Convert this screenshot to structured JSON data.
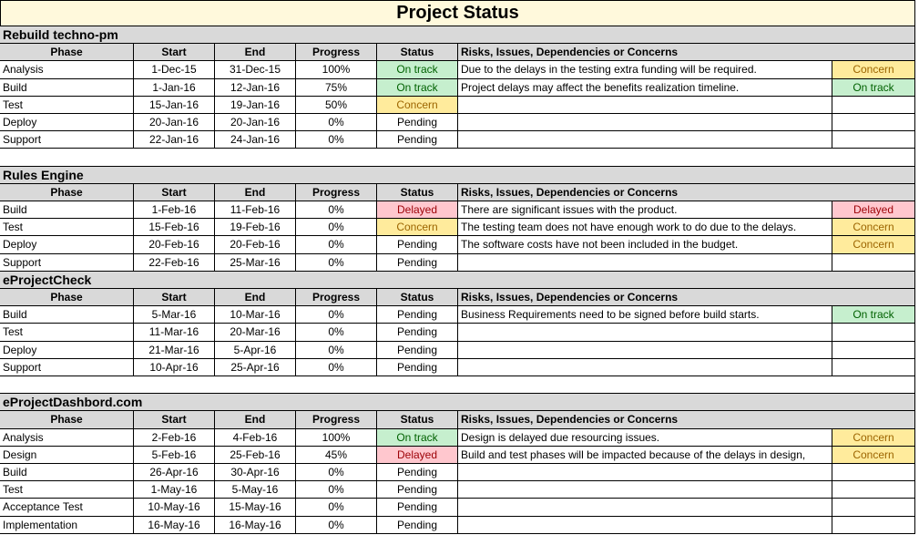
{
  "title": "Project Status",
  "columns": [
    "Phase",
    "Start",
    "End",
    "Progress",
    "Status",
    "Risks, Issues, Dependencies or Concerns"
  ],
  "status_colors": {
    "On track": {
      "bg": "#c6efce",
      "fg": "#006100"
    },
    "Concern": {
      "bg": "#ffeb9c",
      "fg": "#9c6500"
    },
    "Delayed": {
      "bg": "#ffc7ce",
      "fg": "#9c0006"
    }
  },
  "projects": [
    {
      "name": "Rebuild techno-pm",
      "rows": [
        {
          "phase": "Analysis",
          "start": "1-Dec-15",
          "end": "31-Dec-15",
          "progress": "100%",
          "status": "On track",
          "risk": "Due to the delays in the testing extra funding will be required.",
          "risk_status": "Concern"
        },
        {
          "phase": "Build",
          "start": "1-Jan-16",
          "end": "12-Jan-16",
          "progress": "75%",
          "status": "On track",
          "risk": "Project delays may affect the benefits realization timeline.",
          "risk_status": "On track"
        },
        {
          "phase": "Test",
          "start": "15-Jan-16",
          "end": "19-Jan-16",
          "progress": "50%",
          "status": "Concern"
        },
        {
          "phase": "Deploy",
          "start": "20-Jan-16",
          "end": "20-Jan-16",
          "progress": "0%",
          "status": "Pending"
        },
        {
          "phase": "Support",
          "start": "22-Jan-16",
          "end": "24-Jan-16",
          "progress": "0%",
          "status": "Pending"
        }
      ]
    },
    {
      "name": "Rules Engine",
      "rows": [
        {
          "phase": "Build",
          "start": "1-Feb-16",
          "end": "11-Feb-16",
          "progress": "0%",
          "status": "Delayed",
          "risk": "There are significant issues with the product.",
          "risk_status": "Delayed"
        },
        {
          "phase": "Test",
          "start": "15-Feb-16",
          "end": "19-Feb-16",
          "progress": "0%",
          "status": "Concern",
          "risk": "The testing team does not have enough work to do due to the delays.",
          "risk_status": "Concern"
        },
        {
          "phase": "Deploy",
          "start": "20-Feb-16",
          "end": "20-Feb-16",
          "progress": "0%",
          "status": "Pending",
          "risk": "The software costs have not been included in the budget.",
          "risk_status": "Concern"
        },
        {
          "phase": "Support",
          "start": "22-Feb-16",
          "end": "25-Mar-16",
          "progress": "0%",
          "status": "Pending"
        }
      ]
    },
    {
      "name": "eProjectCheck",
      "rows": [
        {
          "phase": "Build",
          "start": "5-Mar-16",
          "end": "10-Mar-16",
          "progress": "0%",
          "status": "Pending",
          "risk": "Business Requirements need to be signed before build starts.",
          "risk_status": "On track"
        },
        {
          "phase": "Test",
          "start": "11-Mar-16",
          "end": "20-Mar-16",
          "progress": "0%",
          "status": "Pending"
        },
        {
          "phase": "Deploy",
          "start": "21-Mar-16",
          "end": "5-Apr-16",
          "progress": "0%",
          "status": "Pending"
        },
        {
          "phase": "Support",
          "start": "10-Apr-16",
          "end": "25-Apr-16",
          "progress": "0%",
          "status": "Pending"
        }
      ]
    },
    {
      "name": "eProjectDashbord.com",
      "rows": [
        {
          "phase": "Analysis",
          "start": "2-Feb-16",
          "end": "4-Feb-16",
          "progress": "100%",
          "status": "On track",
          "risk": "Design is delayed due resourcing issues.",
          "risk_status": "Concern"
        },
        {
          "phase": "Design",
          "start": "5-Feb-16",
          "end": "25-Feb-16",
          "progress": "45%",
          "status": "Delayed",
          "risk": "Build and test phases will be impacted because of the delays in design,",
          "risk_status": "Concern"
        },
        {
          "phase": "Build",
          "start": "26-Apr-16",
          "end": "30-Apr-16",
          "progress": "0%",
          "status": "Pending"
        },
        {
          "phase": "Test",
          "start": "1-May-16",
          "end": "5-May-16",
          "progress": "0%",
          "status": "Pending"
        },
        {
          "phase": "Acceptance Test",
          "start": "10-May-16",
          "end": "15-May-16",
          "progress": "0%",
          "status": "Pending"
        },
        {
          "phase": "Implementation",
          "start": "16-May-16",
          "end": "16-May-16",
          "progress": "0%",
          "status": "Pending"
        }
      ]
    }
  ]
}
